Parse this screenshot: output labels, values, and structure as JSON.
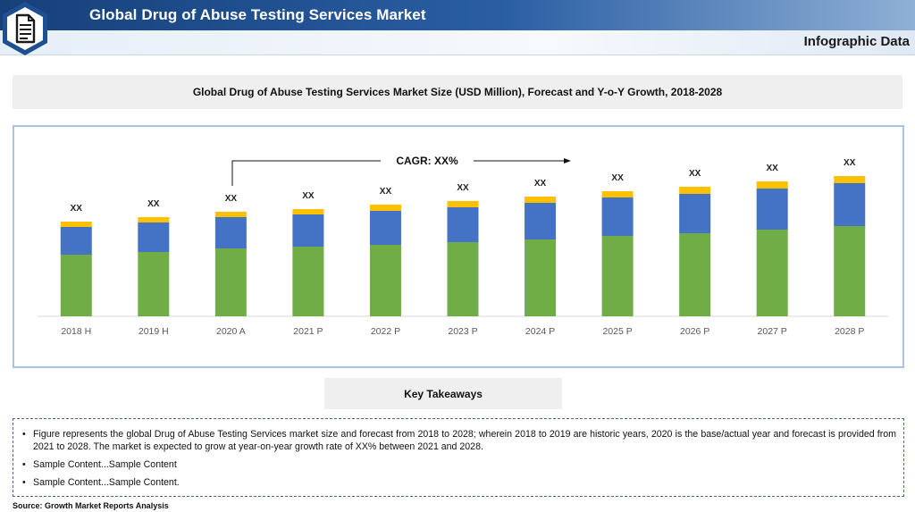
{
  "header": {
    "title": "Global Drug of Abuse Testing Services Market",
    "subtitle": "Infographic Data",
    "logo_icon": "document-icon"
  },
  "chart_title": "Global Drug of Abuse Testing Services Market Size (USD Million), Forecast and Y-o-Y Growth, 2018-2028",
  "cagr_label": "CAGR: XX%",
  "chart_data": {
    "type": "bar",
    "stacked": true,
    "title": "Global Drug of Abuse Testing Services Market Size (USD Million), Forecast and Y-o-Y Growth, 2018-2028",
    "categories": [
      "2018 H",
      "2019 H",
      "2020 A",
      "2021 P",
      "2022 P",
      "2023 P",
      "2024 P",
      "2025 P",
      "2026 P",
      "2027 P",
      "2028 P"
    ],
    "series": [
      {
        "color": "#70ad47",
        "values": [
          69,
          72,
          76,
          78,
          80,
          83,
          86,
          90,
          93,
          97,
          101
        ]
      },
      {
        "color": "#4472c4",
        "values": [
          31,
          33,
          35,
          36,
          38,
          39,
          41,
          43,
          44,
          46,
          48
        ]
      },
      {
        "color": "#ffc000",
        "values": [
          6,
          6,
          6,
          6,
          7,
          7,
          7,
          7,
          8,
          8,
          8
        ]
      }
    ],
    "data_labels": [
      "XX",
      "XX",
      "XX",
      "XX",
      "XX",
      "XX",
      "XX",
      "XX",
      "XX",
      "XX",
      "XX"
    ],
    "ylim": [
      0,
      200
    ],
    "grid": false,
    "legend": "none"
  },
  "takeaways": {
    "title": "Key Takeaways",
    "items": [
      "Figure represents the global Drug of Abuse Testing Services market size and forecast from 2018 to 2028; wherein 2018 to 2019 are historic years, 2020 is the base/actual year and forecast is provided from 2021 to 2028. The market is expected to grow at year-on-year growth rate of XX% between 2021 and 2028.",
      "Sample Content...Sample Content",
      "Sample Content...Sample Content."
    ]
  },
  "source": "Source: Growth Market Reports Analysis"
}
